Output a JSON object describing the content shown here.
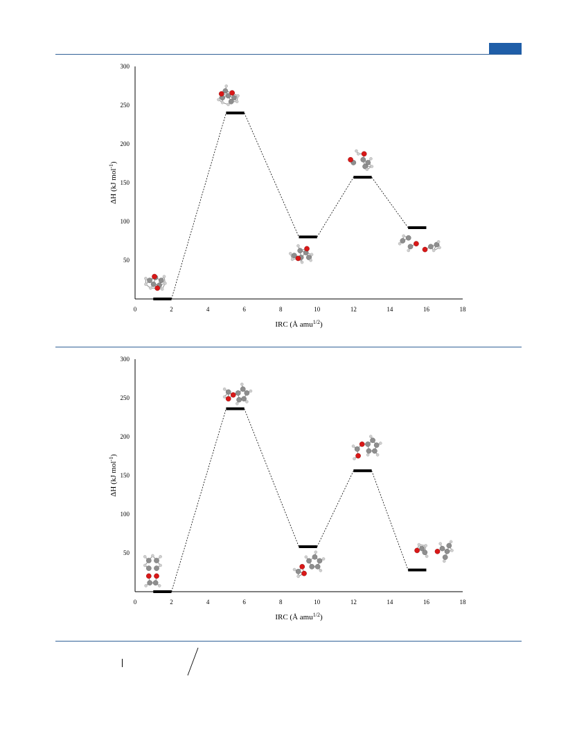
{
  "header": {
    "accent_color": "#1f5ea8",
    "rule_color": "#2f5f96"
  },
  "chart_data": [
    {
      "type": "line",
      "line_style": "dashed connectors between horizontal energy levels",
      "xlabel": "IRC (Å amu",
      "xlabel_sup": "1/2",
      "xlabel_end": ")",
      "ylabel": "ΔH (kJ mol",
      "ylabel_sup": "-1",
      "ylabel_end": ")",
      "xlim": [
        0,
        18
      ],
      "ylim": [
        0,
        300
      ],
      "xticks": [
        0,
        2,
        4,
        6,
        8,
        10,
        12,
        14,
        16,
        18
      ],
      "yticks": [
        50,
        100,
        150,
        200,
        250,
        300
      ],
      "levels": [
        {
          "x": [
            1,
            2
          ],
          "y": 0,
          "structure": "reactant"
        },
        {
          "x": [
            5,
            6
          ],
          "y": 240,
          "structure": "transition-state-1"
        },
        {
          "x": [
            9,
            10
          ],
          "y": 80,
          "structure": "intermediate"
        },
        {
          "x": [
            12,
            13
          ],
          "y": 157,
          "structure": "transition-state-2"
        },
        {
          "x": [
            15,
            16
          ],
          "y": 92,
          "structure": "products"
        }
      ]
    },
    {
      "type": "line",
      "line_style": "dashed connectors between horizontal energy levels",
      "xlabel": "IRC (Å amu",
      "xlabel_sup": "1/2",
      "xlabel_end": ")",
      "ylabel": "ΔH (kJ mol",
      "ylabel_sup": "-1",
      "ylabel_end": ")",
      "xlim": [
        0,
        18
      ],
      "ylim": [
        0,
        300
      ],
      "xticks": [
        0,
        2,
        4,
        6,
        8,
        10,
        12,
        14,
        16,
        18
      ],
      "yticks": [
        50,
        100,
        150,
        200,
        250,
        300
      ],
      "levels": [
        {
          "x": [
            1,
            2
          ],
          "y": 0,
          "structure": "reactant"
        },
        {
          "x": [
            5,
            6
          ],
          "y": 236,
          "structure": "transition-state-1"
        },
        {
          "x": [
            9,
            10
          ],
          "y": 58,
          "structure": "intermediate"
        },
        {
          "x": [
            12,
            13
          ],
          "y": 156,
          "structure": "transition-state-2"
        },
        {
          "x": [
            15,
            16
          ],
          "y": 28,
          "structure": "products"
        }
      ]
    }
  ]
}
